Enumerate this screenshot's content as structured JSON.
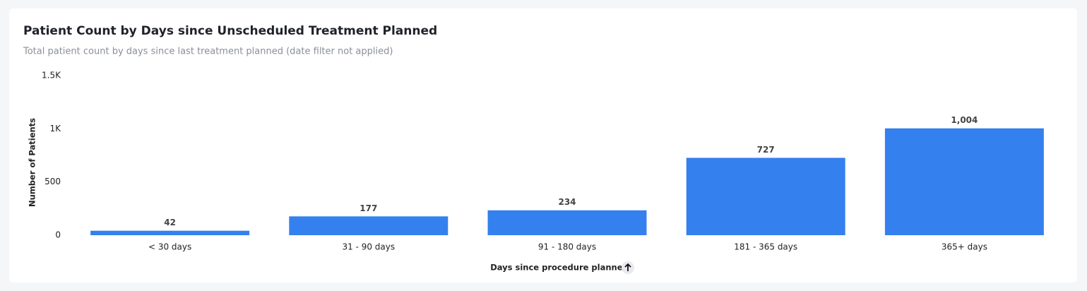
{
  "chart_data": {
    "type": "bar",
    "title": "Patient Count by Days since Unscheduled Treatment Planned",
    "subtitle": "Total patient count by days since last treatment planned (date filter not applied)",
    "x_label": "Days since procedure planned",
    "y_label": "Number of Patients",
    "categories": [
      "< 30 days",
      "31 - 90 days",
      "91 - 180 days",
      "181 - 365 days",
      "365+ days"
    ],
    "values": [
      42,
      177,
      234,
      727,
      1004
    ],
    "value_labels": [
      "42",
      "177",
      "234",
      "727",
      "1,004"
    ],
    "color": "#3580ef",
    "ylim": [
      0,
      1500
    ],
    "yticks": [
      0,
      500,
      {
        "value": 1000,
        "label": "1K"
      },
      {
        "value": 1500,
        "label": "1.5K"
      }
    ],
    "grid": false
  }
}
